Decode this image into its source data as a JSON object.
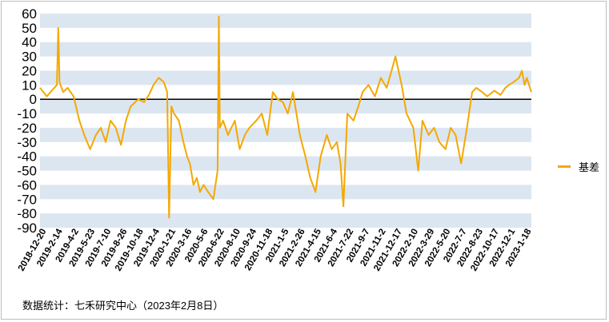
{
  "source_note": "数据统计：七禾研究中心（2023年2月8日）",
  "chart_data": {
    "type": "line",
    "title": "",
    "xlabel": "",
    "ylabel": "",
    "ylim": [
      -90,
      60
    ],
    "yticks": [
      60,
      50,
      40,
      30,
      20,
      10,
      0,
      -10,
      -20,
      -30,
      -40,
      -50,
      -60,
      -70,
      -80,
      -90
    ],
    "grid": "horizontal bands",
    "legend_position": "right",
    "colors": {
      "line": "#f5a800",
      "band": "#dce6f1",
      "zero_line": "#000000"
    },
    "x_tick_labels": [
      "2018-12-20",
      "2019-2-14",
      "2019-4-2",
      "2019-5-23",
      "2019-7-10",
      "2019-8-26",
      "2019-10-18",
      "2019-12-4",
      "2020-1-21",
      "2020-3-16",
      "2020-5-6",
      "2020-6-22",
      "2020-8-10",
      "2020-9-24",
      "2020-11-18",
      "2021-1-5",
      "2021-2-26",
      "2021-4-15",
      "2021-6-4",
      "2021-7-22",
      "2021-9-7",
      "2021-11-2",
      "2021-12-17",
      "2022-2-10",
      "2022-3-29",
      "2022-5-20",
      "2022-7-7",
      "2022-8-23",
      "2022-10-17",
      "2022-12-1",
      "2023-1-18"
    ],
    "series": [
      {
        "name": "基差",
        "x": [
          "2018-12-20",
          "2019-1-10",
          "2019-1-25",
          "2019-2-10",
          "2019-2-14",
          "2019-2-18",
          "2019-3-1",
          "2019-3-15",
          "2019-4-2",
          "2019-4-20",
          "2019-5-5",
          "2019-5-23",
          "2019-6-10",
          "2019-6-25",
          "2019-7-10",
          "2019-7-25",
          "2019-8-10",
          "2019-8-26",
          "2019-9-10",
          "2019-9-25",
          "2019-10-18",
          "2019-11-5",
          "2019-11-20",
          "2019-12-4",
          "2019-12-20",
          "2020-1-5",
          "2020-1-15",
          "2020-1-21",
          "2020-1-28",
          "2020-2-5",
          "2020-2-20",
          "2020-3-5",
          "2020-3-16",
          "2020-3-25",
          "2020-4-5",
          "2020-4-15",
          "2020-4-25",
          "2020-5-6",
          "2020-5-20",
          "2020-6-5",
          "2020-6-18",
          "2020-6-22",
          "2020-6-25",
          "2020-7-5",
          "2020-7-20",
          "2020-8-10",
          "2020-8-25",
          "2020-9-10",
          "2020-9-24",
          "2020-10-15",
          "2020-11-1",
          "2020-11-18",
          "2020-12-5",
          "2020-12-20",
          "2021-1-5",
          "2021-1-20",
          "2021-2-5",
          "2021-2-26",
          "2021-3-15",
          "2021-3-30",
          "2021-4-15",
          "2021-5-1",
          "2021-5-20",
          "2021-6-4",
          "2021-6-20",
          "2021-7-1",
          "2021-7-10",
          "2021-7-22",
          "2021-8-10",
          "2021-8-25",
          "2021-9-7",
          "2021-9-25",
          "2021-10-15",
          "2021-11-2",
          "2021-11-20",
          "2021-12-5",
          "2021-12-17",
          "2022-1-5",
          "2022-1-20",
          "2022-2-10",
          "2022-2-25",
          "2022-3-10",
          "2022-3-29",
          "2022-4-15",
          "2022-5-1",
          "2022-5-20",
          "2022-6-5",
          "2022-6-20",
          "2022-7-7",
          "2022-7-25",
          "2022-8-10",
          "2022-8-23",
          "2022-9-10",
          "2022-9-25",
          "2022-10-17",
          "2022-11-5",
          "2022-11-20",
          "2022-12-1",
          "2022-12-15",
          "2023-1-1",
          "2023-1-10",
          "2023-1-18",
          "2023-1-25",
          "2023-2-8"
        ],
        "values": [
          8,
          2,
          6,
          10,
          50,
          12,
          5,
          8,
          2,
          -15,
          -25,
          -35,
          -25,
          -20,
          -30,
          -15,
          -20,
          -32,
          -15,
          -5,
          0,
          -2,
          3,
          10,
          15,
          12,
          5,
          -83,
          -5,
          -10,
          -15,
          -30,
          -40,
          -45,
          -60,
          -55,
          -65,
          -60,
          -65,
          -70,
          -50,
          58,
          -20,
          -15,
          -25,
          -15,
          -35,
          -25,
          -20,
          -15,
          -10,
          -25,
          5,
          0,
          -2,
          -10,
          5,
          -25,
          -40,
          -55,
          -65,
          -40,
          -25,
          -35,
          -30,
          -45,
          -75,
          -10,
          -15,
          -5,
          5,
          10,
          2,
          15,
          8,
          20,
          30,
          10,
          -10,
          -20,
          -50,
          -15,
          -25,
          -20,
          -30,
          -35,
          -20,
          -25,
          -45,
          -20,
          5,
          8,
          5,
          2,
          6,
          3,
          8,
          10,
          12,
          15,
          20,
          10,
          15,
          5
        ]
      }
    ]
  }
}
